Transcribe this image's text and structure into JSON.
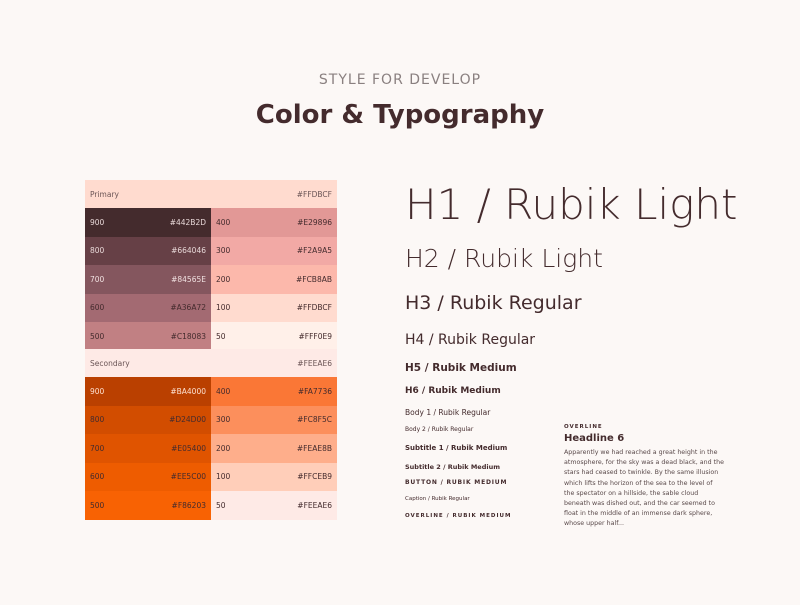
{
  "header": {
    "subtitle": "STYLE FOR DEVELOP",
    "title": "Color & Typography"
  },
  "palettes": [
    {
      "name": "Primary",
      "hex": "#FFDBCF",
      "rows": [
        {
          "left": {
            "shade": "900",
            "hex": "#442B2D",
            "text": "#e8d8d8"
          },
          "right": {
            "shade": "400",
            "hex": "#E29896",
            "text": "#442B2D"
          }
        },
        {
          "left": {
            "shade": "800",
            "hex": "#664046",
            "text": "#e8d8d8"
          },
          "right": {
            "shade": "300",
            "hex": "#F2A9A5",
            "text": "#442B2D"
          }
        },
        {
          "left": {
            "shade": "700",
            "hex": "#84565E",
            "text": "#f0e0e0"
          },
          "right": {
            "shade": "200",
            "hex": "#FCB8AB",
            "text": "#442B2D"
          }
        },
        {
          "left": {
            "shade": "600",
            "hex": "#A36A72",
            "text": "#442B2D"
          },
          "right": {
            "shade": "100",
            "hex": "#FFDBCF",
            "text": "#442B2D"
          }
        },
        {
          "left": {
            "shade": "500",
            "hex": "#C18083",
            "text": "#442B2D"
          },
          "right": {
            "shade": "50",
            "hex": "#FFF0E9",
            "text": "#442B2D"
          }
        }
      ]
    },
    {
      "name": "Secondary",
      "hex": "#FEEAE6",
      "rows": [
        {
          "left": {
            "shade": "900",
            "hex": "#BA4000",
            "text": "#fde0d0"
          },
          "right": {
            "shade": "400",
            "hex": "#FA7736",
            "text": "#442B2D"
          }
        },
        {
          "left": {
            "shade": "800",
            "hex": "#D24D00",
            "text": "#442B2D"
          },
          "right": {
            "shade": "300",
            "hex": "#FC8F5C",
            "text": "#442B2D"
          }
        },
        {
          "left": {
            "shade": "700",
            "hex": "#E05400",
            "text": "#442B2D"
          },
          "right": {
            "shade": "200",
            "hex": "#FEAE8B",
            "text": "#442B2D"
          }
        },
        {
          "left": {
            "shade": "600",
            "hex": "#EE5C00",
            "text": "#442B2D"
          },
          "right": {
            "shade": "100",
            "hex": "#FFCEB9",
            "text": "#442B2D"
          }
        },
        {
          "left": {
            "shade": "500",
            "hex": "#F86203",
            "text": "#442B2D"
          },
          "right": {
            "shade": "50",
            "hex": "#FEEAE6",
            "text": "#442B2D"
          }
        }
      ]
    }
  ],
  "typography": [
    {
      "label": "H1 / Rubik Light"
    },
    {
      "label": "H2 / Rubik Light"
    },
    {
      "label": "H3 / Rubik Regular"
    },
    {
      "label": "H4 / Rubik Regular"
    },
    {
      "label": "H5 / Rubik Medium"
    },
    {
      "label": "H6 / Rubik Medium"
    },
    {
      "label": "Body 1 / Rubik Regular"
    },
    {
      "label": "Body 2 / Rubik Regular"
    },
    {
      "label": "Subtitle 1 / Rubik Medium"
    },
    {
      "label": "Subtitle 2 / Rubik Medium"
    },
    {
      "label": "BUTTON / RUBIK MEDIUM"
    },
    {
      "label": "Caption / Rubik Regular"
    },
    {
      "label": "OVERLINE / RUBIK MEDIUM"
    }
  ],
  "sample": {
    "overline": "OVERLINE",
    "headline": "Headline 6",
    "body": "Apparently we had reached a great height in the atmosphere, for the sky was a dead black, and the stars had ceased to twinkle. By the same illusion which lifts the horizon of the sea to the level of the spectator on a hillside, the sable cloud beneath was dished out, and the car seemed to float in the middle of an immense dark sphere, whose upper half..."
  }
}
